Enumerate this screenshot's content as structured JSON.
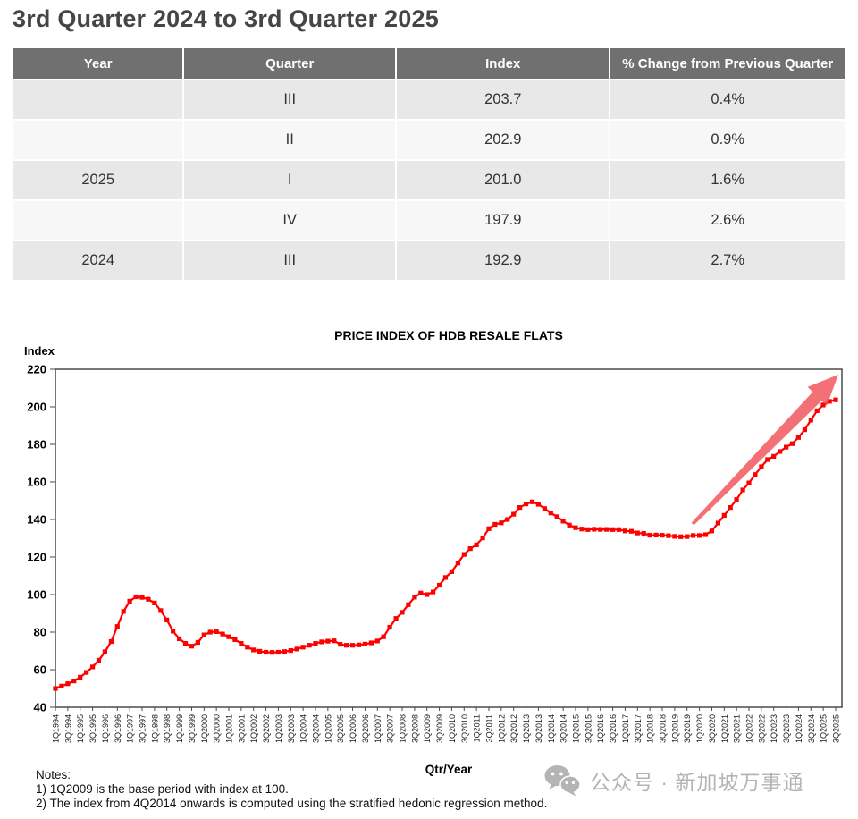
{
  "header": {
    "title": "3rd Quarter 2024 to 3rd Quarter 2025"
  },
  "table": {
    "columns": [
      "Year",
      "Quarter",
      "Index",
      "% Change from Previous Quarter"
    ],
    "rows": [
      {
        "year": "",
        "quarter": "III",
        "index": "203.7",
        "change": "0.4%"
      },
      {
        "year": "",
        "quarter": "II",
        "index": "202.9",
        "change": "0.9%"
      },
      {
        "year": "2025",
        "quarter": "I",
        "index": "201.0",
        "change": "1.6%"
      },
      {
        "year": "",
        "quarter": "IV",
        "index": "197.9",
        "change": "2.6%"
      },
      {
        "year": "2024",
        "quarter": "III",
        "index": "192.9",
        "change": "2.7%"
      }
    ]
  },
  "chart_data": {
    "type": "line",
    "title": "PRICE INDEX OF HDB RESALE FLATS",
    "ylabel": "Index",
    "xlabel": "Qtr/Year",
    "ylim": [
      40,
      220
    ],
    "ytick_step": 20,
    "grid": false,
    "legend": "none",
    "marker": "square",
    "line_color": "#ff0000",
    "annotation": "up-trend-arrow",
    "x_labels": [
      "1Q1994",
      "3Q1994",
      "1Q1995",
      "3Q1995",
      "1Q1996",
      "3Q1996",
      "1Q1997",
      "3Q1997",
      "1Q1998",
      "3Q1998",
      "1Q1999",
      "3Q1999",
      "1Q2000",
      "3Q2000",
      "1Q2001",
      "3Q2001",
      "1Q2002",
      "3Q2002",
      "1Q2003",
      "3Q2003",
      "1Q2004",
      "3Q2004",
      "1Q2005",
      "3Q2005",
      "1Q2006",
      "3Q2006",
      "1Q2007",
      "3Q2007",
      "1Q2008",
      "3Q2008",
      "1Q2009",
      "3Q2009",
      "1Q2010",
      "3Q2010",
      "1Q2011",
      "3Q2011",
      "1Q2012",
      "3Q2012",
      "1Q2013",
      "3Q2013",
      "1Q2014",
      "3Q2014",
      "1Q2015",
      "3Q2015",
      "1Q2016",
      "3Q2016",
      "1Q2017",
      "3Q2017",
      "1Q2018",
      "3Q2018",
      "1Q2019",
      "3Q2019",
      "1Q2020",
      "3Q2020",
      "1Q2021",
      "3Q2021",
      "1Q2022",
      "3Q2022",
      "1Q2023",
      "3Q2023",
      "1Q2024",
      "3Q2024",
      "1Q2025",
      "3Q2025"
    ],
    "values": [
      50.0,
      51.3,
      52.5,
      54.0,
      56.0,
      58.5,
      61.5,
      65.0,
      69.5,
      75.0,
      83.0,
      91.0,
      96.5,
      98.8,
      98.5,
      97.5,
      95.5,
      91.5,
      86.5,
      80.5,
      76.5,
      74.0,
      72.5,
      74.5,
      78.5,
      80.0,
      80.3,
      79.0,
      77.5,
      76.0,
      74.0,
      72.0,
      70.5,
      69.8,
      69.3,
      69.2,
      69.3,
      69.6,
      70.2,
      71.0,
      72.0,
      73.0,
      74.0,
      74.8,
      75.2,
      75.4,
      73.5,
      73.0,
      73.0,
      73.2,
      73.6,
      74.3,
      75.3,
      77.5,
      82.6,
      87.3,
      90.5,
      94.6,
      98.6,
      100.8,
      100.0,
      101.4,
      105.0,
      109.1,
      112.2,
      116.8,
      121.4,
      124.5,
      126.5,
      130.2,
      135.1,
      137.4,
      138.2,
      140.0,
      142.8,
      146.4,
      148.3,
      149.4,
      148.1,
      145.8,
      143.5,
      141.5,
      139.1,
      137.0,
      135.6,
      134.9,
      134.6,
      134.8,
      134.7,
      134.7,
      134.6,
      134.6,
      133.9,
      133.7,
      132.8,
      132.6,
      131.6,
      131.7,
      131.6,
      131.4,
      131.0,
      130.8,
      130.9,
      131.5,
      131.5,
      131.9,
      133.9,
      138.1,
      142.2,
      146.4,
      150.6,
      155.7,
      159.5,
      163.9,
      168.1,
      171.9,
      173.6,
      176.2,
      178.5,
      180.4,
      183.7,
      187.8,
      192.9,
      197.9,
      201.0,
      202.9,
      203.7
    ]
  },
  "notes": {
    "label": "Notes:",
    "items": [
      "1) 1Q2009 is the base period with index at 100.",
      "2) The index from 4Q2014 onwards is computed using the stratified hedonic regression method."
    ]
  },
  "watermark": {
    "icon": "wechat-icon",
    "text": "公众号 · 新加坡万事通",
    "color": "#b4b4b4"
  }
}
